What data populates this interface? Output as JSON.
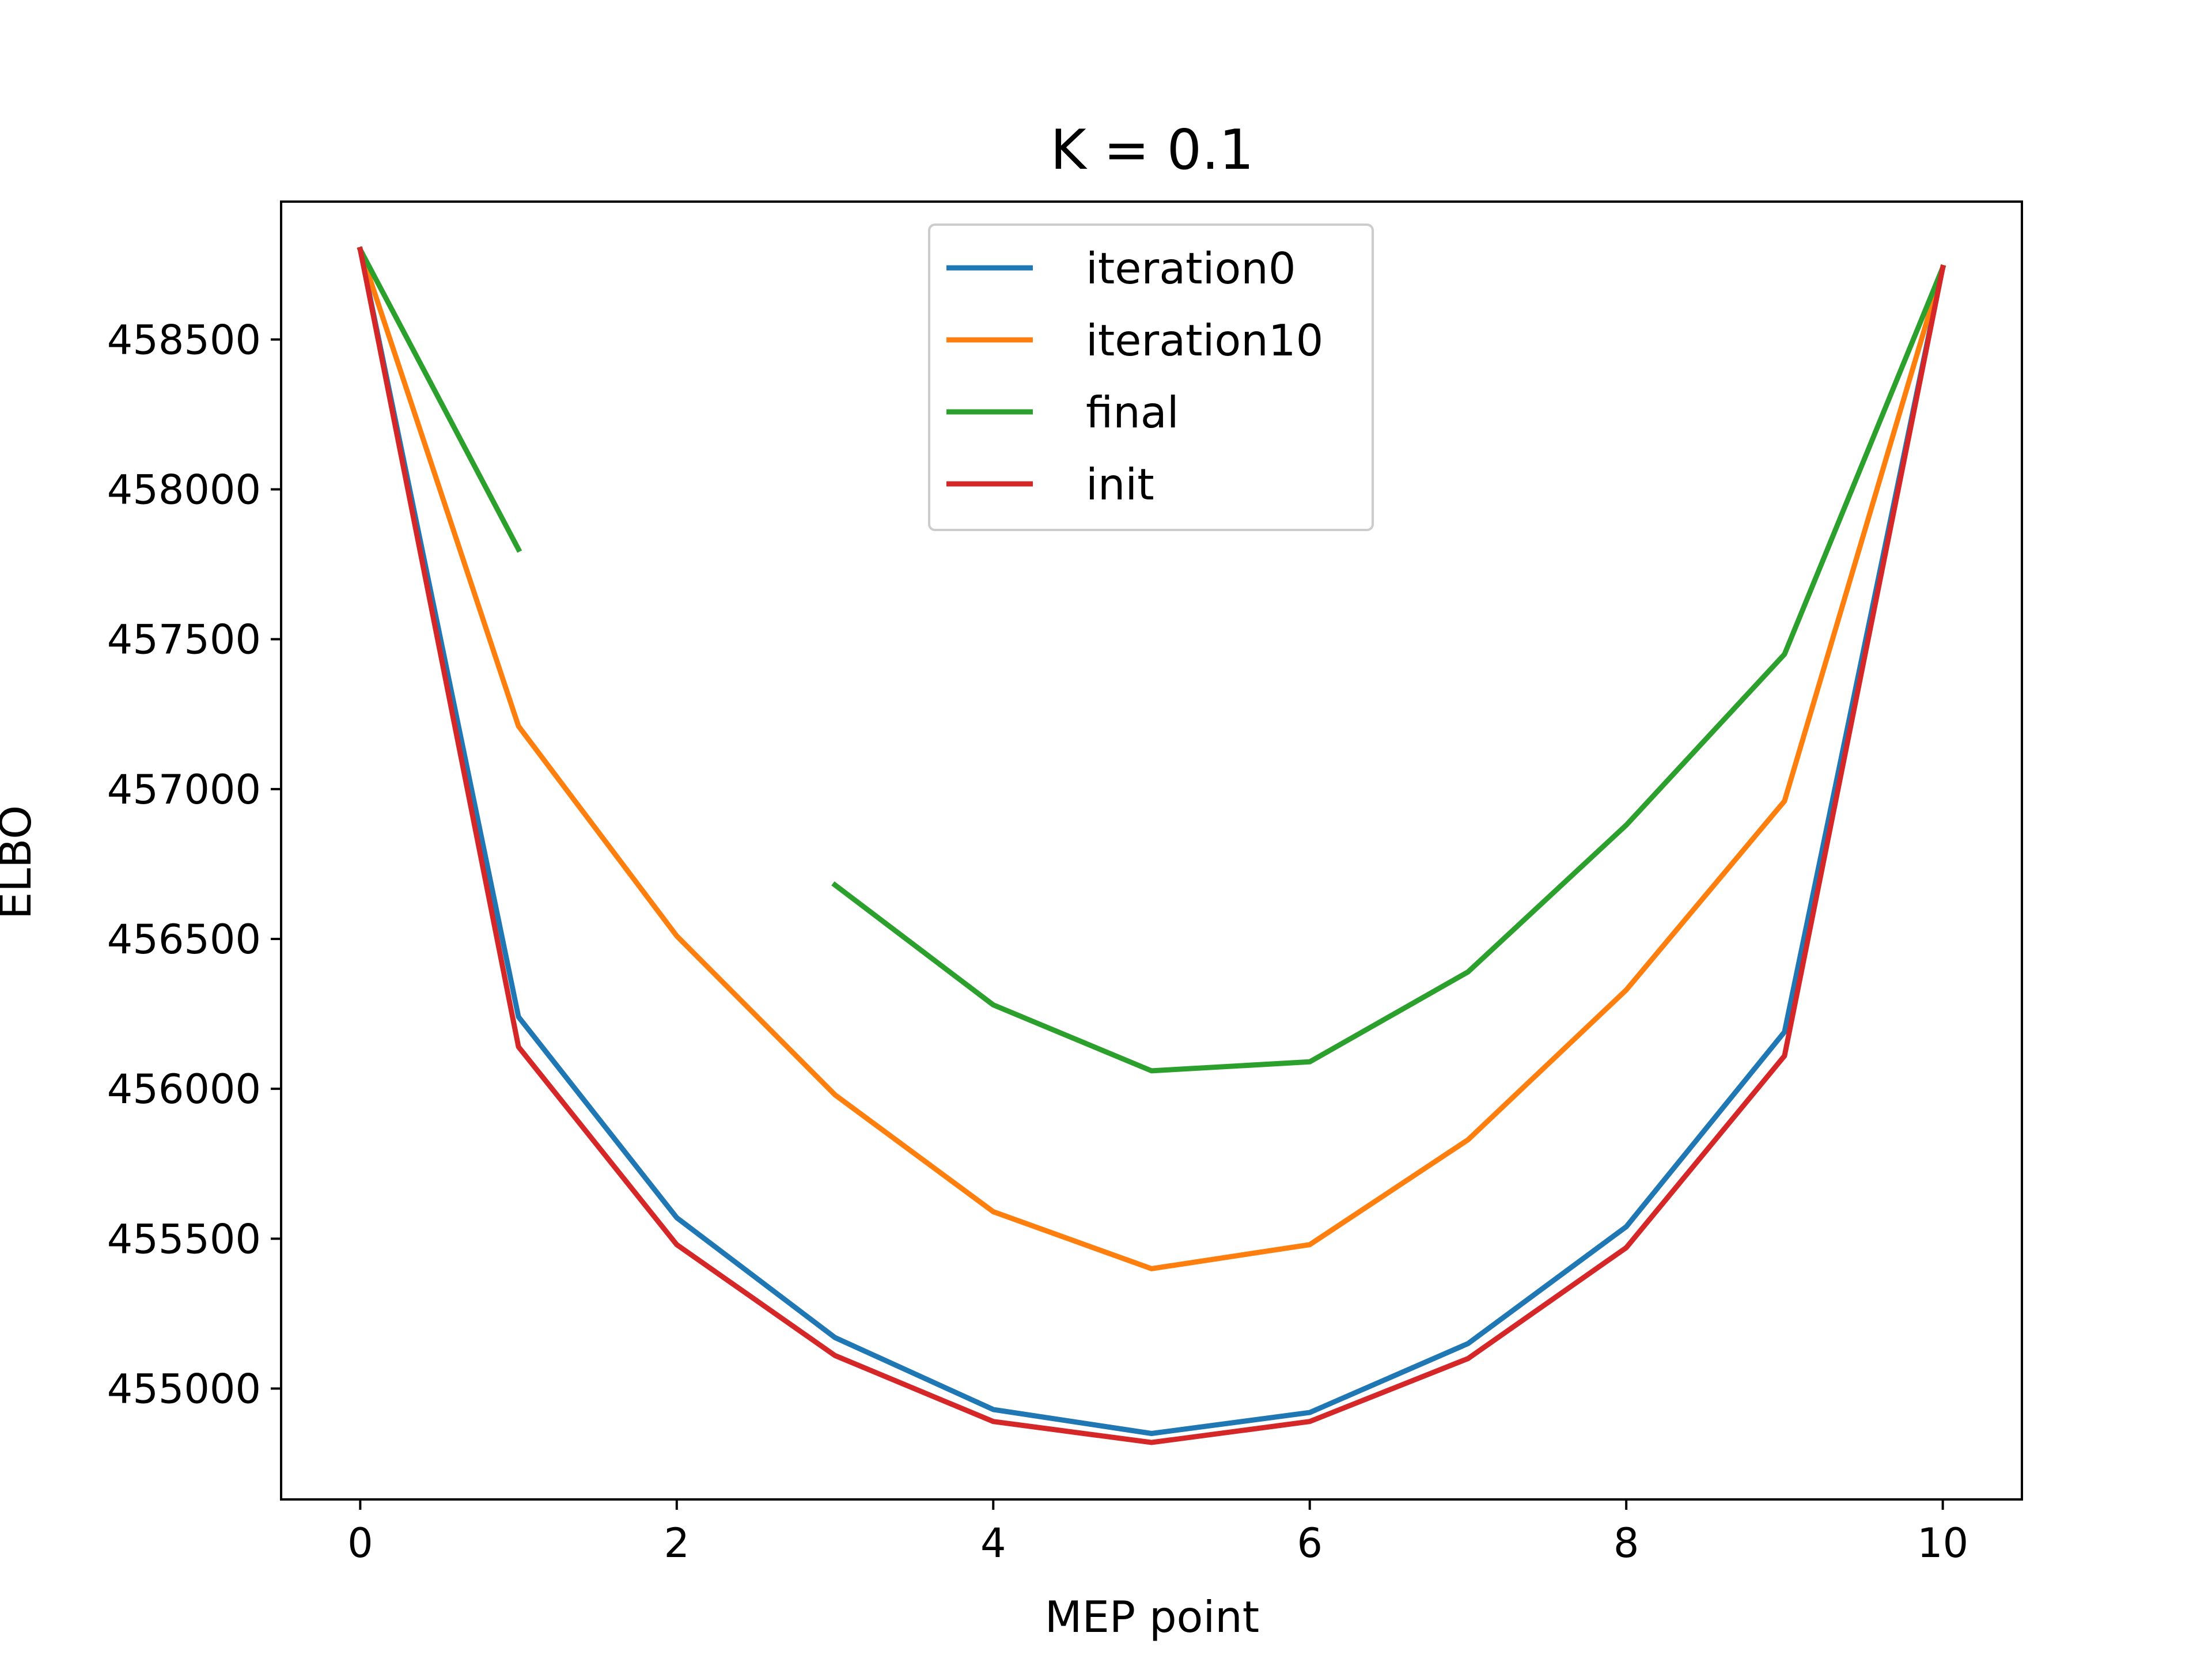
{
  "chart_data": {
    "type": "line",
    "title": "K = 0.1",
    "xlabel": "MEP point",
    "ylabel": "ELBO",
    "xlim": [
      -0.5,
      10.5
    ],
    "ylim": [
      454630,
      458960
    ],
    "xticks": [
      0,
      2,
      4,
      6,
      8,
      10
    ],
    "xtick_labels": [
      "0",
      "2",
      "4",
      "6",
      "8",
      "10"
    ],
    "yticks": [
      455000,
      455500,
      456000,
      456500,
      457000,
      457500,
      458000,
      458500
    ],
    "ytick_labels": [
      "455000",
      "455500",
      "456000",
      "456500",
      "457000",
      "457500",
      "458000",
      "458500"
    ],
    "grid": false,
    "legend_position": "top-center",
    "series": [
      {
        "name": "iteration0",
        "color": "#1f77b4",
        "x": [
          0,
          1,
          2,
          3,
          4,
          5,
          6,
          7,
          8,
          9,
          10
        ],
        "y": [
          458800,
          456240,
          455570,
          455170,
          454930,
          454850,
          454920,
          455150,
          455540,
          456190,
          458740
        ]
      },
      {
        "name": "iteration10",
        "color": "#ff7f0e",
        "x": [
          0,
          1,
          2,
          3,
          4,
          5,
          6,
          7,
          8,
          9,
          10
        ],
        "y": [
          458800,
          457210,
          456510,
          455980,
          455590,
          455400,
          455480,
          455830,
          456330,
          456960,
          458740
        ]
      },
      {
        "name": "final",
        "color": "#2ca02c",
        "x": [
          0,
          1,
          2,
          3,
          4,
          5,
          6,
          7,
          8,
          9,
          10
        ],
        "y": [
          458800,
          457800,
          null,
          456680,
          456280,
          456060,
          456090,
          456390,
          456880,
          457450,
          458740
        ]
      },
      {
        "name": "init",
        "color": "#d62728",
        "x": [
          0,
          1,
          2,
          3,
          4,
          5,
          6,
          7,
          8,
          9,
          10
        ],
        "y": [
          458800,
          456140,
          455480,
          455110,
          454890,
          454820,
          454890,
          455100,
          455470,
          456110,
          458740
        ]
      }
    ]
  }
}
